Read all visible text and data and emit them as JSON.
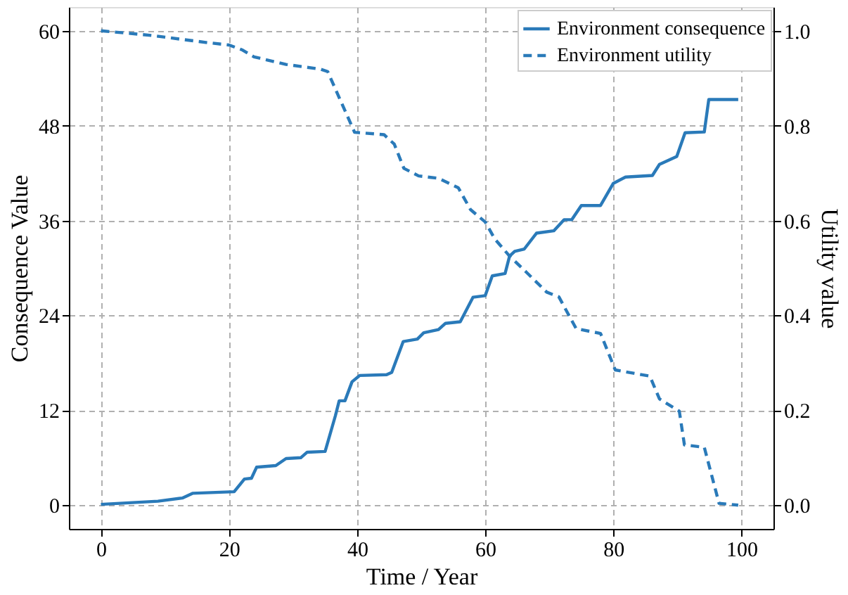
{
  "chart_data": {
    "type": "line",
    "xlabel": "Time / Year",
    "ylabel": "Consequence Value",
    "y2label": "Utility value",
    "xlim": [
      -5,
      105
    ],
    "xticks": [
      0,
      20,
      40,
      60,
      80,
      100
    ],
    "ylim": [
      -3,
      63
    ],
    "yticks": [
      0,
      12,
      24,
      36,
      48,
      60
    ],
    "y2lim": [
      -0.05,
      1.05
    ],
    "y2ticks": [
      {
        "value": 0,
        "label": "0.0"
      },
      {
        "value": 0.2,
        "label": "0.2"
      },
      {
        "value": 0.4,
        "label": "0.4"
      },
      {
        "value": 0.6,
        "label": "0.6"
      },
      {
        "value": 0.8,
        "label": "0.8"
      },
      {
        "value": 1,
        "label": "1.0"
      }
    ],
    "grid": true,
    "legend": "top right",
    "series": [
      {
        "name": "Environment consequence",
        "color": "#2a7ab9",
        "line_style": "solid",
        "x": [
          0,
          8.9,
          12.7,
          14.3,
          20.8,
          22.4,
          23.5,
          24.3,
          27.3,
          28.9,
          31.2,
          32.2,
          35.0,
          36.6,
          37.2,
          38.1,
          39.2,
          40.4,
          44.6,
          45.4,
          47.2,
          49.4,
          50.4,
          52.7,
          53.8,
          56.1,
          58.1,
          60.0,
          61.1,
          63.1,
          63.8,
          64.6,
          66.1,
          68.0,
          70.7,
          72.3,
          73.5,
          75.0,
          78.0,
          80.0,
          81.9,
          86.1,
          87.2,
          89.9,
          91.2,
          94.2,
          94.9,
          99.5
        ],
        "values": [
          0.1,
          0.5,
          0.9,
          1.5,
          1.7,
          3.3,
          3.4,
          4.8,
          5.0,
          5.9,
          6.0,
          6.7,
          6.8,
          11.3,
          13.2,
          13.2,
          15.6,
          16.4,
          16.5,
          16.8,
          20.7,
          21.0,
          21.8,
          22.2,
          23.0,
          23.2,
          26.3,
          26.5,
          29.0,
          29.3,
          31.5,
          32.1,
          32.4,
          34.4,
          34.7,
          36.1,
          36.1,
          37.9,
          37.9,
          40.7,
          41.5,
          41.7,
          43.1,
          44.1,
          47.1,
          47.2,
          51.3,
          51.3
        ]
      },
      {
        "name": "Environment utility",
        "color": "#2a7ab9",
        "line_style": "dashed",
        "axis": "y2",
        "x": [
          0,
          8,
          16.6,
          20.0,
          22.0,
          23.9,
          28.9,
          34.3,
          35.4,
          39.6,
          44.2,
          45.8,
          47.3,
          49.6,
          52.7,
          55.8,
          57.7,
          60.0,
          61.5,
          63.8,
          66.5,
          69.6,
          71.5,
          74.2,
          78.0,
          80.3,
          85.7,
          87.2,
          90.3,
          91.1,
          94.2,
          96.5,
          99.5
        ],
        "values": [
          1.0,
          0.99,
          0.975,
          0.97,
          0.96,
          0.945,
          0.929,
          0.919,
          0.914,
          0.786,
          0.781,
          0.761,
          0.71,
          0.694,
          0.689,
          0.669,
          0.623,
          0.597,
          0.561,
          0.525,
          0.49,
          0.449,
          0.439,
          0.372,
          0.362,
          0.285,
          0.272,
          0.224,
          0.198,
          0.127,
          0.122,
          0.004,
          0.0
        ]
      }
    ]
  }
}
